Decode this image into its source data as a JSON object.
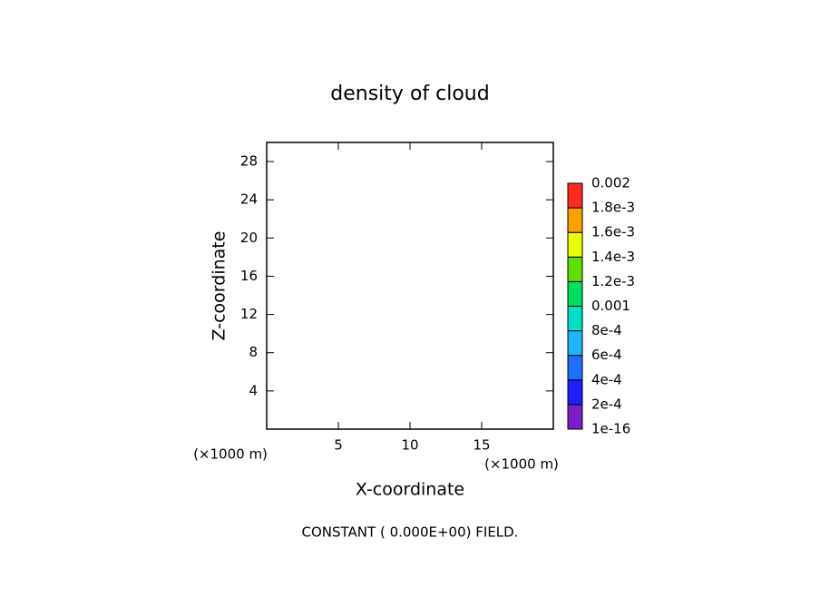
{
  "chart_data": {
    "type": "contour",
    "title": "density of cloud",
    "xlabel": "X-coordinate",
    "ylabel": "Z-coordinate",
    "x_unit_label": "(×1000 m)",
    "y_unit_label": "(×1000 m)",
    "footer": "CONSTANT ( 0.000E+00) FIELD.",
    "xlim": [
      0,
      20
    ],
    "xticks": [
      5,
      10,
      15
    ],
    "ylim": [
      0,
      30
    ],
    "yticks": [
      4,
      8,
      12,
      16,
      20,
      24,
      28
    ],
    "colorbar": {
      "levels": [
        {
          "value": 1e-16,
          "label": "1e-16"
        },
        {
          "value": 0.0002,
          "label": "2e-4"
        },
        {
          "value": 0.0004,
          "label": "4e-4"
        },
        {
          "value": 0.0006,
          "label": "6e-4"
        },
        {
          "value": 0.0008,
          "label": "8e-4"
        },
        0.001,
        {
          "value": 0.0012,
          "label": "1.2e-3"
        },
        {
          "value": 0.0014,
          "label": "1.4e-3"
        },
        {
          "value": 0.0016,
          "label": "1.6e-3"
        },
        {
          "value": 0.0018,
          "label": "1.8e-3"
        },
        0.002
      ],
      "colors": [
        "#7a1fc8",
        "#1e1eff",
        "#1e6eff",
        "#1eb4ff",
        "#00e0c8",
        "#00e060",
        "#60e000",
        "#e8ff00",
        "#ffa000",
        "#ff2a1e"
      ]
    }
  }
}
